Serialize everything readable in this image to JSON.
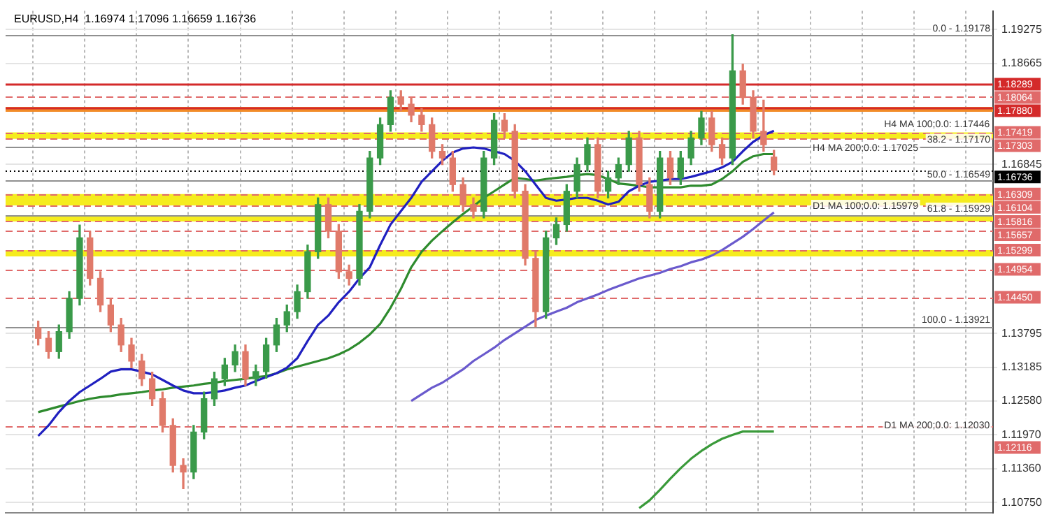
{
  "chart_data": {
    "type": "candlestick",
    "title": "EURUSD,H4  1.16974 1.17096 1.16659 1.16736",
    "categories": [
      null,
      null,
      null,
      null,
      null,
      null,
      null,
      null,
      null,
      null,
      null,
      null,
      null,
      null,
      null,
      null,
      null,
      null,
      null,
      null,
      null,
      null,
      null,
      null,
      null,
      null,
      null,
      null,
      null,
      null,
      null,
      null,
      null,
      null,
      null,
      null,
      null,
      null,
      null,
      null,
      null,
      null,
      null,
      null,
      null,
      null,
      null,
      null,
      null,
      null,
      null,
      null,
      null,
      null,
      null,
      null,
      null,
      null,
      null,
      null,
      null,
      null,
      null,
      null,
      null,
      null,
      null,
      null,
      null,
      null,
      null,
      null
    ],
    "ohlc": [
      [
        1.139,
        1.1402,
        1.1359,
        1.1371
      ],
      [
        1.1371,
        1.1383,
        1.1335,
        1.1347
      ],
      [
        1.1347,
        1.1395,
        1.1335,
        1.1383
      ],
      [
        1.1383,
        1.1455,
        1.1371,
        1.1443
      ],
      [
        1.1443,
        1.1575,
        1.1431,
        1.1552
      ],
      [
        1.1552,
        1.1564,
        1.1467,
        1.1479
      ],
      [
        1.1479,
        1.1491,
        1.1419,
        1.1431
      ],
      [
        1.1431,
        1.1443,
        1.1383,
        1.1395
      ],
      [
        1.1395,
        1.1407,
        1.1347,
        1.1359
      ],
      [
        1.1359,
        1.1371,
        1.1318,
        1.133
      ],
      [
        1.133,
        1.1342,
        1.1286,
        1.1298
      ],
      [
        1.1298,
        1.131,
        1.125,
        1.1262
      ],
      [
        1.1262,
        1.1274,
        1.1202,
        1.1214
      ],
      [
        1.1214,
        1.1226,
        1.113,
        1.1142
      ],
      [
        1.1142,
        1.1154,
        1.11,
        1.113
      ],
      [
        1.113,
        1.1214,
        1.1118,
        1.1202
      ],
      [
        1.1202,
        1.1274,
        1.119,
        1.1262
      ],
      [
        1.1262,
        1.131,
        1.125,
        1.1298
      ],
      [
        1.1298,
        1.1335,
        1.1286,
        1.1323
      ],
      [
        1.1323,
        1.1359,
        1.1311,
        1.1347
      ],
      [
        1.1347,
        1.1359,
        1.1286,
        1.1298
      ],
      [
        1.1298,
        1.1323,
        1.1286,
        1.1311
      ],
      [
        1.1311,
        1.1371,
        1.1299,
        1.1359
      ],
      [
        1.1359,
        1.1407,
        1.1347,
        1.1395
      ],
      [
        1.1395,
        1.1431,
        1.1383,
        1.1419
      ],
      [
        1.1419,
        1.1467,
        1.1407,
        1.1455
      ],
      [
        1.1455,
        1.1539,
        1.1443,
        1.1527
      ],
      [
        1.1527,
        1.1624,
        1.1515,
        1.1612
      ],
      [
        1.1612,
        1.1624,
        1.1552,
        1.1564
      ],
      [
        1.1564,
        1.1576,
        1.1479,
        1.1491
      ],
      [
        1.1491,
        1.1503,
        1.1467,
        1.1479
      ],
      [
        1.1479,
        1.1612,
        1.1467,
        1.16
      ],
      [
        1.16,
        1.1708,
        1.1588,
        1.1696
      ],
      [
        1.1696,
        1.1768,
        1.1684,
        1.1756
      ],
      [
        1.1756,
        1.1817,
        1.1744,
        1.1805
      ],
      [
        1.1805,
        1.1817,
        1.1781,
        1.1793
      ],
      [
        1.1793,
        1.1805,
        1.1761,
        1.1773
      ],
      [
        1.1773,
        1.1785,
        1.1744,
        1.1756
      ],
      [
        1.1756,
        1.1768,
        1.1696,
        1.1708
      ],
      [
        1.1708,
        1.172,
        1.1684,
        1.1696
      ],
      [
        1.1696,
        1.1708,
        1.1636,
        1.1648
      ],
      [
        1.1648,
        1.166,
        1.16,
        1.1612
      ],
      [
        1.1612,
        1.1624,
        1.1588,
        1.16
      ],
      [
        1.16,
        1.1708,
        1.1588,
        1.1696
      ],
      [
        1.1696,
        1.1776,
        1.1684,
        1.1764
      ],
      [
        1.1764,
        1.1776,
        1.1732,
        1.1744
      ],
      [
        1.1744,
        1.1756,
        1.1624,
        1.1636
      ],
      [
        1.1636,
        1.1648,
        1.1503,
        1.1515
      ],
      [
        1.1515,
        1.1527,
        1.1392,
        1.1419
      ],
      [
        1.1419,
        1.1564,
        1.1407,
        1.1552
      ],
      [
        1.1552,
        1.1588,
        1.154,
        1.1576
      ],
      [
        1.1576,
        1.1648,
        1.1564,
        1.1636
      ],
      [
        1.1636,
        1.1696,
        1.1624,
        1.1684
      ],
      [
        1.1684,
        1.1732,
        1.1672,
        1.172
      ],
      [
        1.172,
        1.1732,
        1.1624,
        1.1636
      ],
      [
        1.1636,
        1.1672,
        1.1624,
        1.166
      ],
      [
        1.166,
        1.1696,
        1.1648,
        1.1684
      ],
      [
        1.1684,
        1.1744,
        1.1672,
        1.1732
      ],
      [
        1.1732,
        1.1744,
        1.1636,
        1.1648
      ],
      [
        1.1648,
        1.166,
        1.1588,
        1.16
      ],
      [
        1.16,
        1.1708,
        1.1588,
        1.1696
      ],
      [
        1.1696,
        1.1708,
        1.1648,
        1.166
      ],
      [
        1.166,
        1.1708,
        1.1648,
        1.1696
      ],
      [
        1.1696,
        1.1744,
        1.1684,
        1.1732
      ],
      [
        1.1732,
        1.178,
        1.172,
        1.1768
      ],
      [
        1.1768,
        1.178,
        1.1708,
        1.172
      ],
      [
        1.172,
        1.1732,
        1.1684,
        1.1696
      ],
      [
        1.1696,
        1.1918,
        1.1684,
        1.1853
      ],
      [
        1.1853,
        1.1865,
        1.1793,
        1.1805
      ],
      [
        1.1805,
        1.1817,
        1.1732,
        1.1744
      ],
      [
        1.1744,
        1.18,
        1.1708,
        1.172
      ],
      [
        1.16974,
        1.17096,
        1.16659,
        1.16736
      ]
    ],
    "colors": [
      "#e07a6a",
      "#e07a6a",
      "#3a9a4a",
      "#3a9a4a",
      "#3a9a4a",
      "#e07a6a",
      "#e07a6a",
      "#e07a6a",
      "#e07a6a",
      "#e07a6a",
      "#e07a6a",
      "#e07a6a",
      "#e07a6a",
      "#e07a6a",
      "#e07a6a",
      "#3a9a4a",
      "#3a9a4a",
      "#3a9a4a",
      "#3a9a4a",
      "#3a9a4a",
      "#e07a6a",
      "#3a9a4a",
      "#3a9a4a",
      "#3a9a4a",
      "#3a9a4a",
      "#3a9a4a",
      "#3a9a4a",
      "#3a9a4a",
      "#e07a6a",
      "#e07a6a",
      "#e07a6a",
      "#3a9a4a",
      "#3a9a4a",
      "#3a9a4a",
      "#3a9a4a",
      "#e07a6a",
      "#e07a6a",
      "#e07a6a",
      "#e07a6a",
      "#e07a6a",
      "#e07a6a",
      "#e07a6a",
      "#e07a6a",
      "#3a9a4a",
      "#3a9a4a",
      "#e07a6a",
      "#e07a6a",
      "#e07a6a",
      "#e07a6a",
      "#3a9a4a",
      "#3a9a4a",
      "#3a9a4a",
      "#3a9a4a",
      "#3a9a4a",
      "#e07a6a",
      "#3a9a4a",
      "#3a9a4a",
      "#3a9a4a",
      "#e07a6a",
      "#e07a6a",
      "#3a9a4a",
      "#e07a6a",
      "#3a9a4a",
      "#3a9a4a",
      "#3a9a4a",
      "#e07a6a",
      "#e07a6a",
      "#3a9a4a",
      "#e07a6a",
      "#e07a6a",
      "#e07a6a",
      "#e07a6a"
    ],
    "series": [
      {
        "type": "line",
        "color": "#2020c0",
        "values": [
          1.1195,
          1.1214,
          1.1238,
          1.1258,
          1.1274,
          1.1286,
          1.1298,
          1.1311,
          1.1315,
          1.1315,
          1.1311,
          1.1306,
          1.1296,
          1.1286,
          1.1277,
          1.1272,
          1.1272,
          1.1274,
          1.1277,
          1.1282,
          1.1286,
          1.1294,
          1.1301,
          1.1308,
          1.1318,
          1.1335,
          1.1366,
          1.1395,
          1.1412,
          1.1436,
          1.1455,
          1.1479,
          1.1499,
          1.1539,
          1.1576,
          1.16,
          1.1624,
          1.1653,
          1.1672,
          1.1691,
          1.1706,
          1.1713,
          1.1715,
          1.1713,
          1.1708,
          1.1703,
          1.1691,
          1.1672,
          1.1648,
          1.1624,
          1.1619,
          1.1621,
          1.1624,
          1.1624,
          1.1619,
          1.1612,
          1.1617,
          1.1636,
          1.1646,
          1.1653,
          1.1655,
          1.1658,
          1.1658,
          1.1662,
          1.1667,
          1.1672,
          1.1679,
          1.1689,
          1.1708,
          1.1725,
          1.1737,
          1.1745
        ]
      },
      {
        "type": "line",
        "color": "#2e8b2e",
        "values": [
          1.1238,
          1.1243,
          1.1248,
          1.1253,
          1.1258,
          1.1262,
          1.1265,
          1.1267,
          1.127,
          1.1272,
          1.1274,
          1.1277,
          1.1279,
          1.1282,
          1.1284,
          1.1286,
          1.1289,
          1.1291,
          1.1294,
          1.1296,
          1.1298,
          1.1301,
          1.1303,
          1.1308,
          1.1315,
          1.132,
          1.1325,
          1.133,
          1.1335,
          1.1342,
          1.1351,
          1.1363,
          1.1378,
          1.1397,
          1.1426,
          1.146,
          1.1499,
          1.1527,
          1.1547,
          1.1564,
          1.158,
          1.1595,
          1.1609,
          1.1624,
          1.1636,
          1.1648,
          1.166,
          1.1658,
          1.1655,
          1.1658,
          1.166,
          1.1662,
          1.1665,
          1.1667,
          1.1665,
          1.1658,
          1.165,
          1.1648,
          1.1646,
          1.1643,
          1.1643,
          1.1643,
          1.1643,
          1.1646,
          1.1646,
          1.1648,
          1.1658,
          1.1672,
          1.1689,
          1.1699,
          1.1703,
          1.1703
        ]
      },
      {
        "type": "line",
        "color": "#6a5acd",
        "values": [
          null,
          null,
          null,
          null,
          null,
          null,
          null,
          null,
          null,
          null,
          null,
          null,
          null,
          null,
          null,
          null,
          null,
          null,
          null,
          null,
          null,
          null,
          null,
          null,
          null,
          null,
          null,
          null,
          null,
          null,
          null,
          null,
          null,
          null,
          null,
          null,
          1.1258,
          1.127,
          1.1282,
          1.1291,
          1.1303,
          1.1315,
          1.133,
          1.1342,
          1.1354,
          1.1368,
          1.138,
          1.1392,
          1.1404,
          1.1412,
          1.1419,
          1.1426,
          1.1436,
          1.1443,
          1.145,
          1.1458,
          1.1465,
          1.1472,
          1.1479,
          1.1484,
          1.1489,
          1.1496,
          1.1501,
          1.1508,
          1.1513,
          1.152,
          1.153,
          1.1542,
          1.1554,
          1.1568,
          1.1583,
          1.1598
        ]
      },
      {
        "type": "line",
        "color": "#3a9a3a",
        "values": [
          null,
          null,
          null,
          null,
          null,
          null,
          null,
          null,
          null,
          null,
          null,
          null,
          null,
          null,
          null,
          null,
          null,
          null,
          null,
          null,
          null,
          null,
          null,
          null,
          null,
          null,
          null,
          null,
          null,
          null,
          null,
          null,
          null,
          null,
          null,
          null,
          null,
          null,
          null,
          null,
          null,
          null,
          null,
          null,
          null,
          null,
          null,
          null,
          null,
          null,
          null,
          null,
          null,
          null,
          null,
          null,
          null,
          null,
          1.1065,
          1.1079,
          1.1098,
          1.1118,
          1.1137,
          1.1154,
          1.1168,
          1.118,
          1.119,
          1.1197,
          1.1203,
          1.1203,
          1.1203,
          1.1203
        ]
      }
    ],
    "ylim": [
      1.1056,
      1.1961
    ],
    "yticks": [
      1.19275,
      1.18665,
      1.16845,
      1.13795,
      1.13185,
      {
        "value": 1.1258,
        "label": "1.12580"
      },
      {
        "value": 1.1197,
        "label": "1.11970"
      },
      {
        "value": 1.1136,
        "label": "1.11360"
      },
      {
        "value": 1.1075,
        "label": "1.10750"
      }
    ],
    "tick_labels": "y",
    "grid": true,
    "legend": false,
    "bands": [
      {
        "axis": "y",
        "from": 1.17792,
        "to": 1.1788,
        "color": "#f28c28"
      },
      {
        "axis": "y",
        "from": 1.17303,
        "to": 1.17419,
        "color": "#f5ec1e"
      },
      {
        "axis": "y",
        "from": 1.16104,
        "to": 1.16309,
        "color": "#f5ec1e"
      },
      {
        "axis": "y",
        "from": 1.15816,
        "to": 1.15929,
        "color": "#f5ec1e"
      },
      {
        "axis": "y",
        "from": 1.15185,
        "to": 1.15299,
        "color": "#f5ec1e"
      }
    ],
    "ref_lines": [
      {
        "axis": "y",
        "value": 1.18289,
        "label": "1.18289",
        "color": "#d42a2a",
        "line_style": "solid"
      },
      {
        "axis": "y",
        "value": 1.18064,
        "label": "1.18064",
        "color": "#e06a6a",
        "line_style": "dashed"
      },
      {
        "axis": "y",
        "value": 1.1788,
        "label": "1.17880",
        "color": "#d42a2a",
        "line_style": "solid"
      },
      {
        "axis": "y",
        "value": 1.17419,
        "label": "1.17419",
        "color": "#e06a6a",
        "line_style": "dashed"
      },
      {
        "axis": "y",
        "value": 1.17303,
        "label": "1.17303",
        "color": "#e06a6a",
        "line_style": "dashed"
      },
      {
        "axis": "y",
        "value": 1.16736,
        "label": "1.16736",
        "color": "#000000",
        "line_style": "dotted"
      },
      {
        "axis": "y",
        "value": 1.16309,
        "label": "1.16309",
        "color": "#e06a6a",
        "line_style": "dashed"
      },
      {
        "axis": "y",
        "value": 1.16104,
        "label": "1.16104",
        "color": "#e06a6a",
        "line_style": "dashed"
      },
      {
        "axis": "y",
        "value": 1.15816,
        "label": "1.15816",
        "color": "#e06a6a",
        "line_style": "dashed"
      },
      {
        "axis": "y",
        "value": 1.15657,
        "label": "1.15657",
        "color": "#e06a6a",
        "line_style": "dashed"
      },
      {
        "axis": "y",
        "value": 1.15299,
        "label": "1.15299",
        "color": "#e06a6a",
        "line_style": "dashed"
      },
      {
        "axis": "y",
        "value": 1.14954,
        "label": "1.14954",
        "color": "#e06a6a",
        "line_style": "dashed"
      },
      {
        "axis": "y",
        "value": 1.1445,
        "label": "1.14450",
        "color": "#e06a6a",
        "line_style": "dashed"
      },
      {
        "axis": "y",
        "value": 1.12116,
        "label": "1.12116",
        "color": "#e06a6a",
        "line_style": "dashed"
      },
      {
        "axis": "y",
        "value": 1.19178,
        "color": "#909090",
        "line_style": "solid"
      },
      {
        "axis": "y",
        "value": 1.1717,
        "color": "#909090",
        "line_style": "solid"
      },
      {
        "axis": "y",
        "value": 1.16549,
        "color": "#909090",
        "line_style": "solid"
      },
      {
        "axis": "y",
        "value": 1.15929,
        "color": "#909090",
        "line_style": "solid"
      },
      {
        "axis": "y",
        "value": 1.13921,
        "color": "#909090",
        "line_style": "solid"
      }
    ],
    "annotations": [
      {
        "text": "0.0 - 1.19178",
        "y": 1.19178
      },
      {
        "text": "38.2 - 1.17170",
        "y": 1.1717
      },
      {
        "text": "50.0 - 1.16549",
        "y": 1.16549
      },
      {
        "text": "61.8 - 1.15929",
        "y": 1.15929
      },
      {
        "text": "100.0 - 1.13921",
        "y": 1.13921
      },
      {
        "text": "H4 MA 100;0.0: 1.17446",
        "y": 1.17446
      },
      {
        "text": "H4 MA 200;0.0: 1.17025",
        "y": 1.17025
      },
      {
        "text": "D1 MA 100;0.0: 1.15979",
        "y": 1.15979
      },
      {
        "text": "D1 MA 200;0.0: 1.12030",
        "y": 1.1203
      }
    ]
  }
}
